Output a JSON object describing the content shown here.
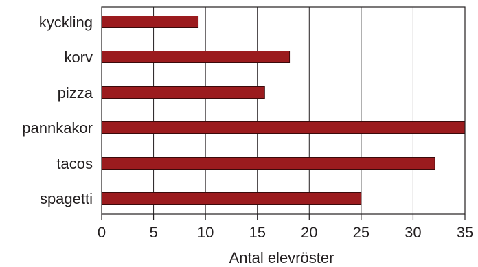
{
  "chart_data": {
    "type": "bar",
    "orientation": "horizontal",
    "categories": [
      "kyckling",
      "korv",
      "pizza",
      "pannkakor",
      "tacos",
      "spagetti"
    ],
    "values": [
      9.3,
      18.1,
      15.7,
      35,
      32.1,
      25
    ],
    "xlabel": "Antal elevröster",
    "ylabel": "",
    "xlim": [
      0,
      35
    ],
    "xticks": [
      0,
      5,
      10,
      15,
      20,
      25,
      30,
      35
    ],
    "grid": "vertical",
    "bar_color": "#9b1b1e",
    "bar_edge_color": "#3a0a0b"
  }
}
